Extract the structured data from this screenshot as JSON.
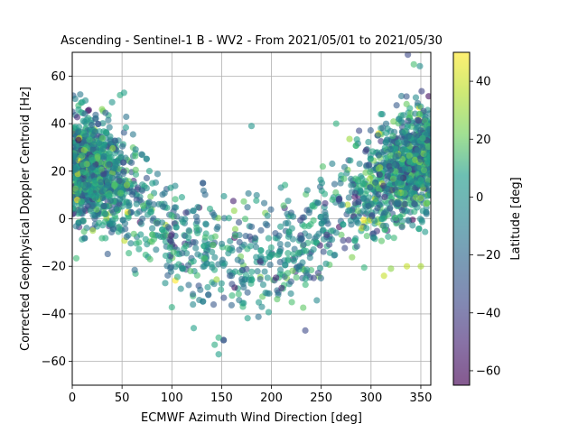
{
  "chart_data": {
    "type": "scatter",
    "title": "Ascending - Sentinel-1 B - WV2 - From 2021/05/01 to 2021/05/30",
    "xlabel": "ECMWF Azimuth Wind Direction [deg]",
    "ylabel": "Corrected Geophysical Doppler Centroid [Hz]",
    "xlim": [
      0,
      360
    ],
    "ylim": [
      -70,
      70
    ],
    "xticks": [
      "0",
      "50",
      "100",
      "150",
      "200",
      "250",
      "300",
      "350"
    ],
    "yticks": [
      "−60",
      "−40",
      "−20",
      "0",
      "20",
      "40",
      "60"
    ],
    "grid": true,
    "colorbar": {
      "label": "Latitude [deg]",
      "range": [
        -65,
        50
      ],
      "ticks": [
        "−60",
        "−40",
        "−20",
        "0",
        "20",
        "40"
      ],
      "colormap": "viridis"
    },
    "points_summary": {
      "approx_count": 9000,
      "trend_curve": [
        {
          "x": 0,
          "y": 22
        },
        {
          "x": 25,
          "y": 20
        },
        {
          "x": 50,
          "y": 14
        },
        {
          "x": 75,
          "y": 2
        },
        {
          "x": 100,
          "y": -8
        },
        {
          "x": 125,
          "y": -15
        },
        {
          "x": 150,
          "y": -18
        },
        {
          "x": 175,
          "y": -18
        },
        {
          "x": 200,
          "y": -17
        },
        {
          "x": 225,
          "y": -14
        },
        {
          "x": 250,
          "y": -6
        },
        {
          "x": 275,
          "y": 5
        },
        {
          "x": 300,
          "y": 13
        },
        {
          "x": 325,
          "y": 19
        },
        {
          "x": 350,
          "y": 25
        },
        {
          "x": 360,
          "y": 27
        }
      ],
      "spread_hz": 11,
      "alpha": 0.6
    },
    "notable_points": [
      {
        "x": 40,
        "y": 49,
        "lat": -5
      },
      {
        "x": 48,
        "y": 52,
        "lat": 5
      },
      {
        "x": 52,
        "y": 53,
        "lat": 0
      },
      {
        "x": 337,
        "y": 69,
        "lat": -40
      },
      {
        "x": 350,
        "y": 71,
        "lat": 30
      },
      {
        "x": 147,
        "y": -57,
        "lat": 0
      },
      {
        "x": 143,
        "y": -53,
        "lat": 5
      },
      {
        "x": 147,
        "y": -50,
        "lat": 8
      },
      {
        "x": 122,
        "y": -46,
        "lat": 0
      },
      {
        "x": 234,
        "y": -47,
        "lat": -40
      },
      {
        "x": 180,
        "y": 39,
        "lat": -5
      },
      {
        "x": 265,
        "y": 40,
        "lat": 8
      },
      {
        "x": 310,
        "y": 44,
        "lat": 0
      },
      {
        "x": 288,
        "y": 37,
        "lat": -40
      },
      {
        "x": 336,
        "y": -20,
        "lat": 40
      },
      {
        "x": 350,
        "y": -20,
        "lat": 35
      },
      {
        "x": 313,
        "y": -24,
        "lat": 40
      },
      {
        "x": 320,
        "y": -21,
        "lat": 30
      }
    ]
  }
}
